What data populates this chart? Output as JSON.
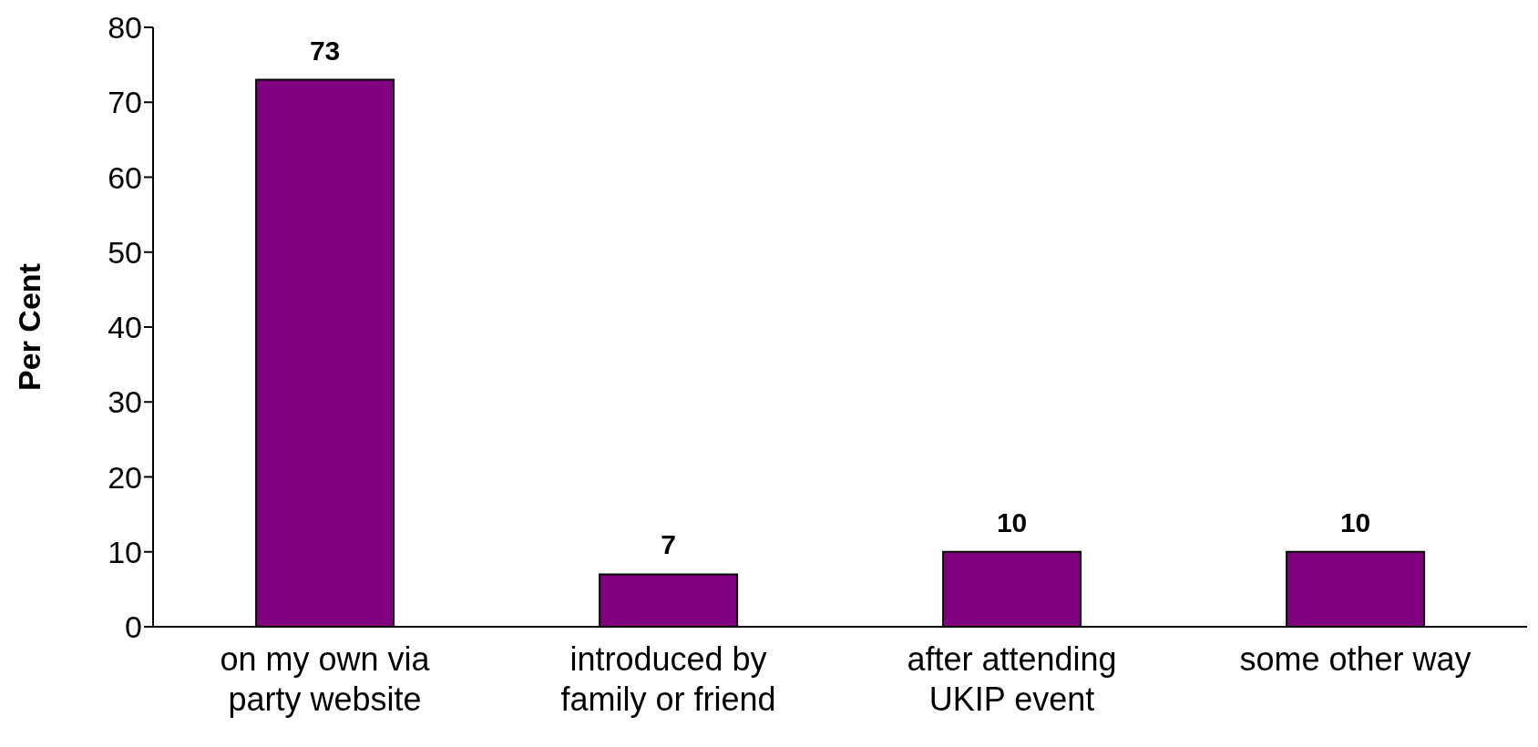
{
  "chart_data": {
    "type": "bar",
    "ylabel": "Per Cent",
    "categories": [
      "on my own via party website",
      "introduced by family or friend",
      "after attending UKIP event",
      "some other way"
    ],
    "values": [
      73,
      7,
      10,
      10
    ],
    "color": "#800080",
    "ylim": [
      0,
      80
    ],
    "yticks": [
      0,
      10,
      20,
      30,
      40,
      50,
      60,
      70,
      80
    ],
    "grid": false,
    "legend": false,
    "data_labels": true
  }
}
